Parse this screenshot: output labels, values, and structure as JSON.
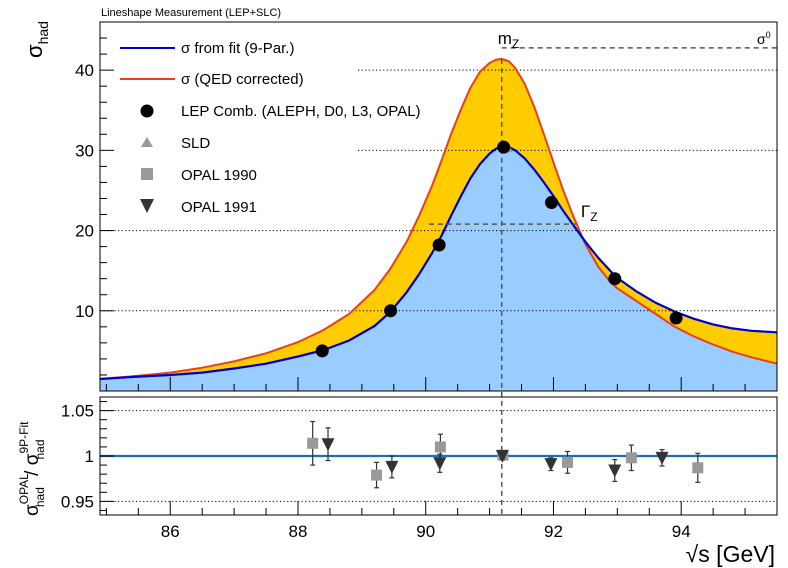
{
  "chart_data": {
    "type": "line",
    "header": "Lineshape Measurement (LEP+SLC)",
    "xlabel": "√s [GeV]",
    "top": {
      "ylabel": "σhad",
      "xlim": [
        84.9,
        95.5
      ],
      "ylim": [
        0,
        46
      ],
      "yticks": [
        10,
        20,
        30,
        40
      ],
      "ytick_labels": [
        "10",
        "20",
        "30",
        "40"
      ],
      "gridlines": [
        10,
        20,
        30,
        40
      ],
      "legend": [
        {
          "key": "fit",
          "label": "σ from fit (9-Par.)",
          "color": "#0000cc"
        },
        {
          "key": "qed",
          "label": "σ (QED corrected)",
          "color": "#e8401c"
        },
        {
          "key": "lep",
          "label": "LEP Comb. (ALEPH, D0, L3, OPAL)",
          "color": "#000000"
        },
        {
          "key": "sld",
          "label": "SLD",
          "color": "#999999"
        },
        {
          "key": "opal1990",
          "label": "OPAL 1990",
          "color": "#999999"
        },
        {
          "key": "opal1991",
          "label": "OPAL 1991",
          "color": "#333333"
        }
      ],
      "series": [
        {
          "name": "σ from fit (9-Par.)",
          "color": "#0000cc",
          "x": [
            84.9,
            85.5,
            86.0,
            86.5,
            87.0,
            87.5,
            88.0,
            88.4,
            88.8,
            89.2,
            89.45,
            89.7,
            89.9,
            90.1,
            90.25,
            90.4,
            90.55,
            90.7,
            90.85,
            91.0,
            91.1,
            91.2,
            91.3,
            91.4,
            91.55,
            91.7,
            91.85,
            92.0,
            92.15,
            92.3,
            92.5,
            92.7,
            92.9,
            93.0,
            93.3,
            93.6,
            93.9,
            94.2,
            94.5,
            94.8,
            95.1,
            95.5
          ],
          "y": [
            1.5,
            1.8,
            2.0,
            2.3,
            2.8,
            3.4,
            4.3,
            5.1,
            6.3,
            8.1,
            9.9,
            12.3,
            14.6,
            17.2,
            19.4,
            21.9,
            24.3,
            26.5,
            28.3,
            29.6,
            30.2,
            30.5,
            30.4,
            30.0,
            29.0,
            27.6,
            26.0,
            24.3,
            22.5,
            20.8,
            18.6,
            16.6,
            14.9,
            14.1,
            12.4,
            11.0,
            9.9,
            9.0,
            8.3,
            7.8,
            7.5,
            7.3
          ]
        },
        {
          "name": "σ (QED corrected)",
          "color": "#e8401c",
          "x": [
            84.9,
            85.5,
            86.0,
            86.5,
            87.0,
            87.5,
            88.0,
            88.4,
            88.8,
            89.2,
            89.45,
            89.7,
            89.9,
            90.1,
            90.25,
            90.4,
            90.55,
            90.7,
            90.85,
            91.0,
            91.1,
            91.19,
            91.3,
            91.4,
            91.55,
            91.7,
            91.85,
            92.0,
            92.15,
            92.3,
            92.5,
            92.7,
            92.9,
            93.0,
            93.3,
            93.6,
            93.9,
            94.2,
            94.5,
            94.8,
            95.1,
            95.5
          ],
          "y": [
            1.5,
            1.9,
            2.3,
            2.9,
            3.7,
            4.7,
            6.1,
            7.6,
            9.6,
            12.6,
            15.3,
            18.6,
            21.9,
            25.6,
            28.8,
            32.1,
            35.1,
            37.8,
            39.8,
            40.9,
            41.3,
            41.4,
            41.1,
            40.3,
            38.3,
            35.4,
            32.0,
            28.5,
            25.1,
            22.0,
            18.3,
            15.5,
            13.5,
            12.8,
            11.2,
            9.6,
            8.0,
            6.8,
            5.8,
            4.9,
            4.2,
            3.4
          ]
        }
      ],
      "points": {
        "lep": {
          "name": "LEP Comb. (ALEPH, D0, L3, OPAL)",
          "x": [
            88.38,
            89.45,
            90.21,
            91.22,
            91.97,
            92.96,
            93.92
          ],
          "y": [
            5.0,
            10.0,
            18.2,
            30.4,
            23.5,
            14.0,
            9.1
          ]
        },
        "sld": {
          "name": "SLD",
          "x": [
            91.27
          ],
          "y": [
            30.4
          ]
        }
      },
      "annotations": {
        "mz": "m",
        "mz_sub": "Z",
        "gz": "Γ",
        "gz_sub": "Z",
        "s0": "σ",
        "s0_sup": "0"
      },
      "mz_value": 91.19,
      "gz_level": 20.8,
      "gz_range": [
        90.05,
        92.35
      ],
      "s0_value": 41.4
    },
    "bottom": {
      "ylabel": "σhad OPAL / σhad 9P-Fit",
      "xlim": [
        84.9,
        95.5
      ],
      "ylim": [
        0.935,
        1.065
      ],
      "yticks": [
        0.95,
        1.0,
        1.05
      ],
      "ytick_labels": [
        "0.95",
        "1",
        "1.05"
      ],
      "gridlines": [
        0.95,
        1.05
      ],
      "reference_line": 1.0,
      "xticks": [
        86,
        88,
        90,
        92,
        94
      ],
      "xtick_labels": [
        "86",
        "88",
        "90",
        "92",
        "94"
      ],
      "series": [
        {
          "name": "OPAL 1990",
          "color": "#999999",
          "x": [
            88.23,
            89.23,
            90.23,
            91.21,
            92.22,
            93.22,
            94.26
          ],
          "y": [
            1.014,
            0.979,
            1.01,
            1.001,
            0.993,
            0.998,
            0.987
          ],
          "err": [
            0.024,
            0.014,
            0.014,
            0.004,
            0.012,
            0.014,
            0.016
          ]
        },
        {
          "name": "OPAL 1991",
          "color": "#333333",
          "x": [
            88.47,
            89.47,
            90.22,
            91.2,
            91.96,
            92.96,
            93.7
          ],
          "y": [
            1.013,
            0.988,
            0.992,
            1.0,
            0.991,
            0.984,
            0.998
          ],
          "err": [
            0.018,
            0.012,
            0.01,
            0.004,
            0.007,
            0.012,
            0.009
          ]
        }
      ]
    }
  }
}
